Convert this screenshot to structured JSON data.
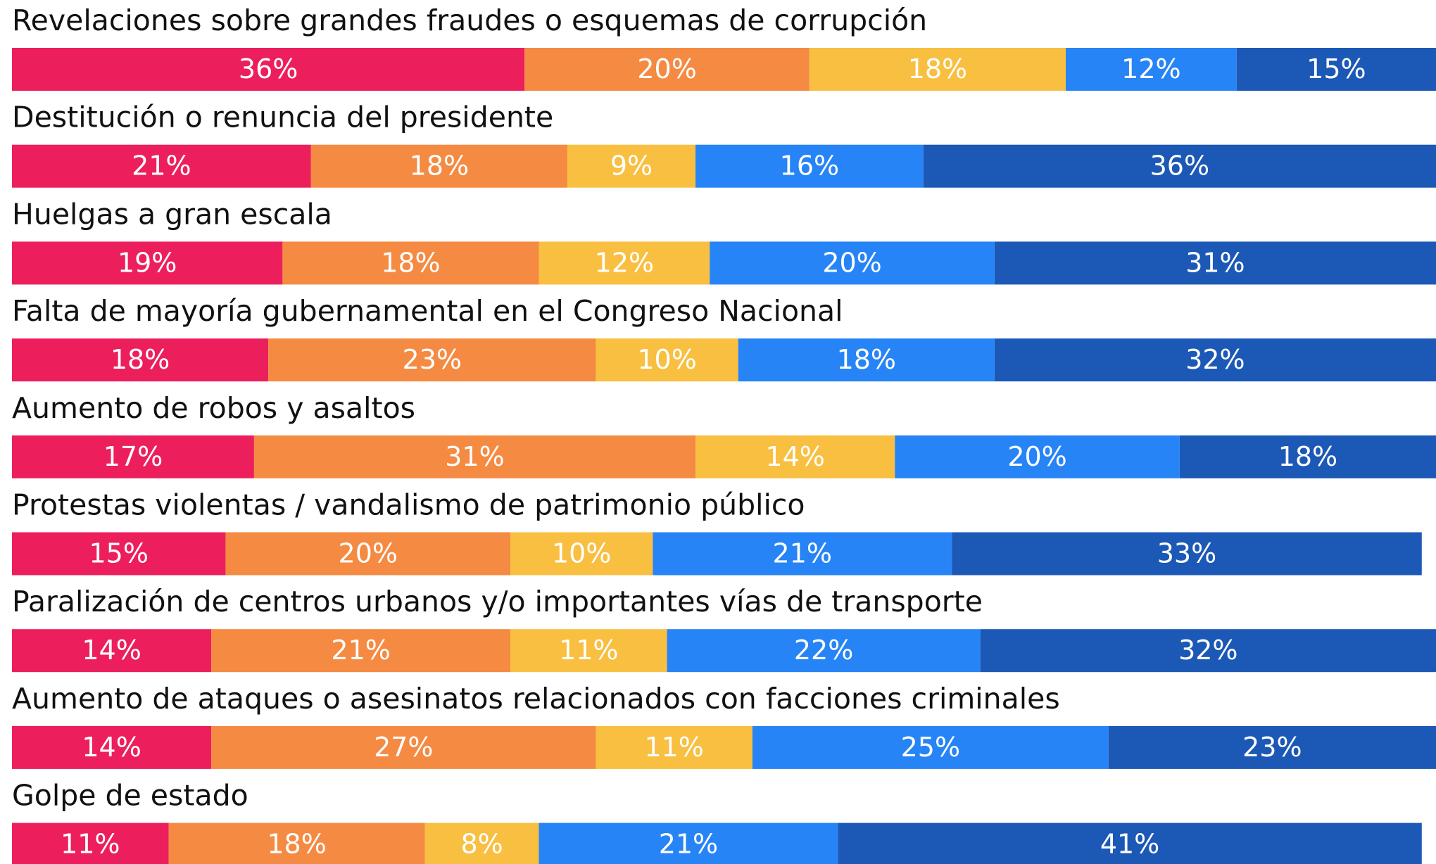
{
  "chart_data": {
    "type": "stacked_barh",
    "categories": [
      "Revelaciones sobre grandes fraudes o esquemas de corrupción",
      "Destitución o renuncia del presidente",
      "Huelgas a gran escala",
      "Falta de mayoría gubernamental en el Congreso Nacional",
      "Aumento de robos y asaltos",
      "Protestas violentas / vandalismo de patrimonio público",
      "Paralización de centros urbanos y/o importantes vías de transporte",
      "Aumento de ataques o asesinatos relacionados con facciones criminales",
      "Golpe de estado"
    ],
    "xlim": [
      0,
      100
    ],
    "series": [
      {
        "color": "#ec1f5c",
        "values": [
          36,
          21,
          19,
          18,
          17,
          15,
          14,
          14,
          11
        ],
        "value_labels": [
          "36%",
          "21%",
          "19%",
          "18%",
          "17%",
          "15%",
          "14%",
          "14%",
          "11%"
        ]
      },
      {
        "color": "#f58a42",
        "values": [
          20,
          18,
          18,
          23,
          31,
          20,
          21,
          27,
          18
        ],
        "value_labels": [
          "20%",
          "18%",
          "18%",
          "23%",
          "31%",
          "20%",
          "21%",
          "27%",
          "18%"
        ]
      },
      {
        "color": "#f8bf40",
        "values": [
          18,
          9,
          12,
          10,
          14,
          10,
          11,
          11,
          8
        ],
        "value_labels": [
          "18%",
          "9%",
          "12%",
          "10%",
          "14%",
          "10%",
          "11%",
          "11%",
          "8%"
        ]
      },
      {
        "color": "#2684f6",
        "values": [
          12,
          16,
          20,
          18,
          20,
          21,
          22,
          25,
          21
        ],
        "value_labels": [
          "12%",
          "16%",
          "20%",
          "18%",
          "20%",
          "21%",
          "22%",
          "25%",
          "21%"
        ]
      },
      {
        "color": "#1c58b6",
        "values": [
          15,
          36,
          31,
          32,
          18,
          33,
          32,
          23,
          41
        ],
        "value_labels": [
          "15%",
          "36%",
          "31%",
          "32%",
          "18%",
          "33%",
          "32%",
          "23%",
          "41%"
        ]
      }
    ]
  }
}
